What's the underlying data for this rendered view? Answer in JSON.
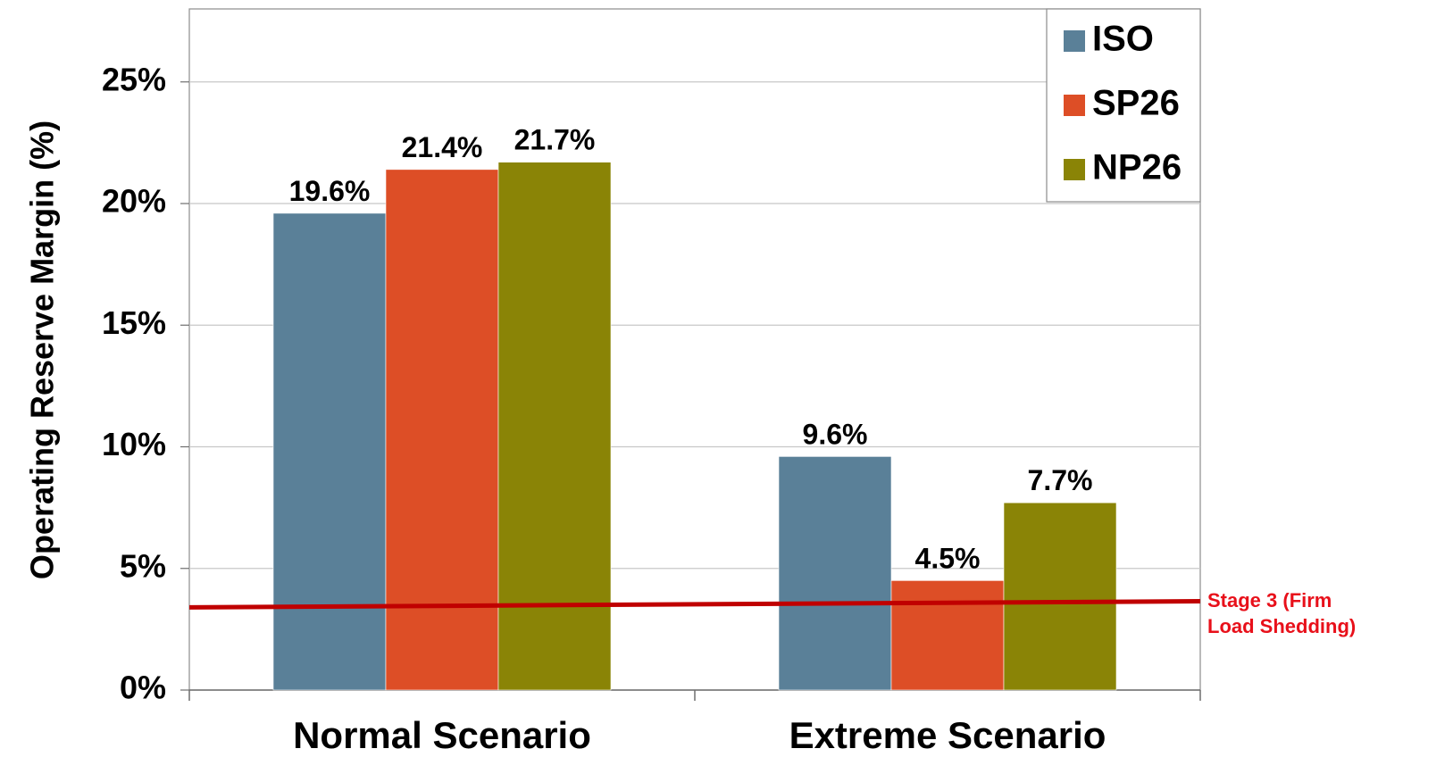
{
  "chart_data": {
    "type": "bar",
    "categories": [
      "Normal Scenario",
      "Extreme Scenario"
    ],
    "series": [
      {
        "name": "ISO",
        "color": "#5a8098",
        "values": [
          19.6,
          9.6
        ],
        "labels": [
          "19.6%",
          "9.6%"
        ]
      },
      {
        "name": "SP26",
        "color": "#dd4e26",
        "values": [
          21.4,
          4.5
        ],
        "labels": [
          "21.4%",
          "4.5%"
        ]
      },
      {
        "name": "NP26",
        "color": "#8a8406",
        "values": [
          21.7,
          7.7
        ],
        "labels": [
          "21.7%",
          "7.7%"
        ]
      }
    ],
    "ylabel": "Operating Reserve Margin (%)",
    "ylim": [
      0,
      28
    ],
    "yticks": [
      0,
      5,
      10,
      15,
      20,
      25
    ],
    "ytick_labels": [
      "0%",
      "5%",
      "10%",
      "15%",
      "20%",
      "25%"
    ],
    "grid": true,
    "legend_position": "top-right",
    "reference_line": {
      "value_start": 3.4,
      "value_end": 3.65,
      "color": "#c00000",
      "label_line1": "Stage 3 (Firm",
      "label_line2": "Load Shedding)",
      "label_color": "#e8101a"
    }
  }
}
